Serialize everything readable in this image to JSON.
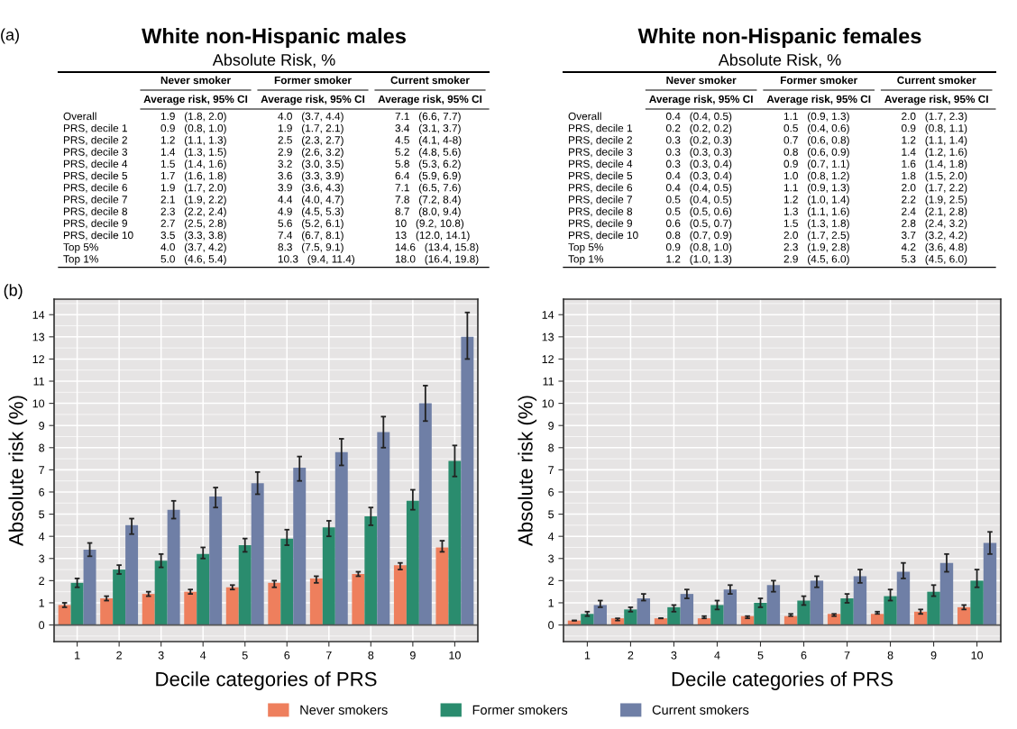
{
  "chart_data": [
    {
      "type": "other",
      "title": "White non-Hispanic males",
      "subtitle": "Absolute Risk, %",
      "categories": [
        "Never smoker",
        "Former smoker",
        "Current smoker"
      ],
      "annotations": [
        "(a)",
        "Average risk, 95% CI",
        "Average risk, 95% CI",
        "Average risk, 95% CI"
      ],
      "y_categories": [
        "Overall",
        "PRS, decile 1",
        "PRS, decile 2",
        "PRS, decile 3",
        "PRS, decile 4",
        "PRS, decile 5",
        "PRS, decile 6",
        "PRS, decile 7",
        "PRS, decile 8",
        "PRS, decile 9",
        "PRS, decile 10",
        "Top 5%",
        "Top 1%"
      ],
      "cell_labels": [
        [
          "1.9   (1.8, 2.0)",
          "4.0   (3.7, 4.4)",
          "7.1   (6.6, 7.7)"
        ],
        [
          "0.9   (0.8, 1.0)",
          "1.9   (1.7, 2.1)",
          "3.4   (3.1, 3.7)"
        ],
        [
          "1.2   (1.1, 1.3)",
          "2.5   (2.3, 2.7)",
          "4.5   (4.1, 4-8)"
        ],
        [
          "1.4   (1.3, 1.5)",
          "2.9   (2.6, 3.2)",
          "5.2   (4.8, 5.6)"
        ],
        [
          "1.5   (1.4, 1.6)",
          "3.2   (3.0, 3.5)",
          "5.8   (5.3, 6.2)"
        ],
        [
          "1.7   (1.6, 1.8)",
          "3.6   (3.3, 3.9)",
          "6.4   (5.9, 6.9)"
        ],
        [
          "1.9   (1.7, 2.0)",
          "3.9   (3.6, 4.3)",
          "7.1   (6.5, 7.6)"
        ],
        [
          "2.1   (1.9, 2.2)",
          "4.4   (4.0, 4.7)",
          "7.8   (7.2, 8.4)"
        ],
        [
          "2.3   (2.2, 2.4)",
          "4.9   (4.5, 5.3)",
          "8.7   (8.0, 9.4)"
        ],
        [
          "2.7   (2.5, 2.8)",
          "5.6   (5.2, 6.1)",
          "10   (9.2, 10.8)"
        ],
        [
          "3.5   (3.3, 3.8)",
          "7.4   (6.7, 8.1)",
          "13   (12.0, 14.1)"
        ],
        [
          "4.0   (3.7, 4.2)",
          "8.3   (7.5, 9.1)",
          "14.6   (13.4, 15.8)"
        ],
        [
          "5.0   (4.6, 5.4)",
          "10.3   (9.4, 11.4)",
          "18.0   (16.4, 19.8)"
        ]
      ]
    },
    {
      "type": "other",
      "title": "White non-Hispanic females",
      "subtitle": "Absolute Risk, %",
      "categories": [
        "Never smoker",
        "Former smoker",
        "Current smoker"
      ],
      "annotations": [
        "Average risk, 95% CI",
        "Average risk, 95% CI",
        "Average risk, 95% CI"
      ],
      "y_categories": [
        "Overall",
        "PRS, decile 1",
        "PRS, decile 2",
        "PRS, decile 3",
        "PRS, decile 4",
        "PRS, decile 5",
        "PRS, decile 6",
        "PRS, decile 7",
        "PRS, decile 8",
        "PRS, decile 9",
        "PRS, decile 10",
        "Top 5%",
        "Top 1%"
      ],
      "cell_labels": [
        [
          "0.4   (0.4, 0.5)",
          "1.1   (0.9, 1.3)",
          "2.0   (1.7, 2.3)"
        ],
        [
          "0.2   (0.2, 0.2)",
          "0.5   (0.4, 0.6)",
          "0.9   (0.8, 1.1)"
        ],
        [
          "0.3   (0.2, 0.3)",
          "0.7   (0.6, 0.8)",
          "1.2   (1.1, 1.4)"
        ],
        [
          "0.3   (0.3, 0.3)",
          "0.8   (0.6, 0.9)",
          "1.4   (1.2, 1.6)"
        ],
        [
          "0.3   (0.3, 0.4)",
          "0.9   (0.7, 1.1)",
          "1.6   (1.4, 1.8)"
        ],
        [
          "0.4   (0.3, 0.4)",
          "1.0   (0.8, 1.2)",
          "1.8   (1.5, 2.0)"
        ],
        [
          "0.4   (0.4, 0.5)",
          "1.1   (0.9, 1.3)",
          "2.0   (1.7, 2.2)"
        ],
        [
          "0.5   (0.4, 0.5)",
          "1.2   (1.0, 1.4)",
          "2.2   (1.9, 2.5)"
        ],
        [
          "0.5   (0.5, 0.6)",
          "1.3   (1.1, 1.6)",
          "2.4   (2.1, 2.8)"
        ],
        [
          "0.6   (0.5, 0.7)",
          "1.5   (1.3, 1.8)",
          "2.8   (2.4, 3.2)"
        ],
        [
          "0.8   (0.7, 0.9)",
          "2.0   (1.7, 2.5)",
          "3.7   (3.2, 4.2)"
        ],
        [
          "0.9   (0.8, 1.0)",
          "2.3   (1.9, 2.8)",
          "4.2   (3.6, 4.8)"
        ],
        [
          "1.2   (1.0, 1.3)",
          "2.9   (4.5, 6.0)",
          "5.3   (4.5, 6.0)"
        ]
      ]
    },
    {
      "type": "bar",
      "xlabel": "Decile categories of PRS",
      "ylabel": "Absolute risk (%)",
      "annotations": [
        "(b)"
      ],
      "categories": [
        "1",
        "2",
        "3",
        "4",
        "5",
        "6",
        "7",
        "8",
        "9",
        "10"
      ],
      "ylim": [
        -0.75,
        14.7
      ],
      "yticks": [
        0,
        1,
        2,
        3,
        4,
        5,
        6,
        7,
        8,
        9,
        10,
        11,
        12,
        13,
        14
      ],
      "grid": true,
      "ref_lines": [
        {
          "axis": "y",
          "value": 0,
          "color": "#555555"
        }
      ],
      "series": [
        {
          "color": "#ee7f5d",
          "values": [
            0.9,
            1.2,
            1.4,
            1.5,
            1.7,
            1.9,
            2.1,
            2.3,
            2.7,
            3.5
          ],
          "errors": [
            [
              0.8,
              1.0
            ],
            [
              1.1,
              1.3
            ],
            [
              1.3,
              1.5
            ],
            [
              1.4,
              1.6
            ],
            [
              1.6,
              1.8
            ],
            [
              1.7,
              2.0
            ],
            [
              1.9,
              2.2
            ],
            [
              2.2,
              2.4
            ],
            [
              2.5,
              2.8
            ],
            [
              3.3,
              3.8
            ]
          ]
        },
        {
          "color": "#2a8c6e",
          "values": [
            1.9,
            2.5,
            2.9,
            3.2,
            3.6,
            3.9,
            4.4,
            4.9,
            5.6,
            7.4
          ],
          "errors": [
            [
              1.7,
              2.1
            ],
            [
              2.3,
              2.7
            ],
            [
              2.6,
              3.2
            ],
            [
              3.0,
              3.5
            ],
            [
              3.3,
              3.9
            ],
            [
              3.6,
              4.3
            ],
            [
              4.0,
              4.7
            ],
            [
              4.5,
              5.3
            ],
            [
              5.2,
              6.1
            ],
            [
              6.7,
              8.1
            ]
          ]
        },
        {
          "color": "#6f7fa6",
          "values": [
            3.4,
            4.5,
            5.2,
            5.8,
            6.4,
            7.1,
            7.8,
            8.7,
            10,
            13
          ],
          "errors": [
            [
              3.1,
              3.7
            ],
            [
              4.1,
              4.8
            ],
            [
              4.8,
              5.6
            ],
            [
              5.3,
              6.2
            ],
            [
              5.9,
              6.9
            ],
            [
              6.5,
              7.6
            ],
            [
              7.2,
              8.4
            ],
            [
              8.0,
              9.4
            ],
            [
              9.2,
              10.8
            ],
            [
              12.0,
              14.1
            ]
          ]
        }
      ]
    },
    {
      "type": "bar",
      "xlabel": "Decile categories of PRS",
      "ylabel": "Absolute risk (%)",
      "categories": [
        "1",
        "2",
        "3",
        "4",
        "5",
        "6",
        "7",
        "8",
        "9",
        "10"
      ],
      "ylim": [
        -0.75,
        14.7
      ],
      "yticks": [
        0,
        1,
        2,
        3,
        4,
        5,
        6,
        7,
        8,
        9,
        10,
        11,
        12,
        13,
        14
      ],
      "grid": true,
      "legend": "bottom",
      "ref_lines": [
        {
          "axis": "y",
          "value": 0,
          "color": "#555555"
        }
      ],
      "series": [
        {
          "name": "Never smokers",
          "color": "#ee7f5d",
          "values": [
            0.2,
            0.3,
            0.3,
            0.3,
            0.4,
            0.4,
            0.5,
            0.5,
            0.6,
            0.8
          ],
          "errors": [
            [
              0.2,
              0.2
            ],
            [
              0.2,
              0.3
            ],
            [
              0.3,
              0.3
            ],
            [
              0.3,
              0.4
            ],
            [
              0.3,
              0.4
            ],
            [
              0.4,
              0.5
            ],
            [
              0.4,
              0.5
            ],
            [
              0.5,
              0.6
            ],
            [
              0.5,
              0.7
            ],
            [
              0.7,
              0.9
            ]
          ]
        },
        {
          "name": "Former smokers",
          "color": "#2a8c6e",
          "values": [
            0.5,
            0.7,
            0.8,
            0.9,
            1.0,
            1.1,
            1.2,
            1.3,
            1.5,
            2.0
          ],
          "errors": [
            [
              0.4,
              0.6
            ],
            [
              0.6,
              0.8
            ],
            [
              0.6,
              0.9
            ],
            [
              0.7,
              1.1
            ],
            [
              0.8,
              1.2
            ],
            [
              0.9,
              1.3
            ],
            [
              1.0,
              1.4
            ],
            [
              1.1,
              1.6
            ],
            [
              1.3,
              1.8
            ],
            [
              1.7,
              2.5
            ]
          ]
        },
        {
          "name": "Current smokers",
          "color": "#6f7fa6",
          "values": [
            0.9,
            1.2,
            1.4,
            1.6,
            1.8,
            2.0,
            2.2,
            2.4,
            2.8,
            3.7
          ],
          "errors": [
            [
              0.8,
              1.1
            ],
            [
              1.1,
              1.4
            ],
            [
              1.2,
              1.6
            ],
            [
              1.4,
              1.8
            ],
            [
              1.5,
              2.0
            ],
            [
              1.7,
              2.2
            ],
            [
              1.9,
              2.5
            ],
            [
              2.1,
              2.8
            ],
            [
              2.4,
              3.2
            ],
            [
              3.2,
              4.2
            ]
          ]
        }
      ]
    }
  ]
}
